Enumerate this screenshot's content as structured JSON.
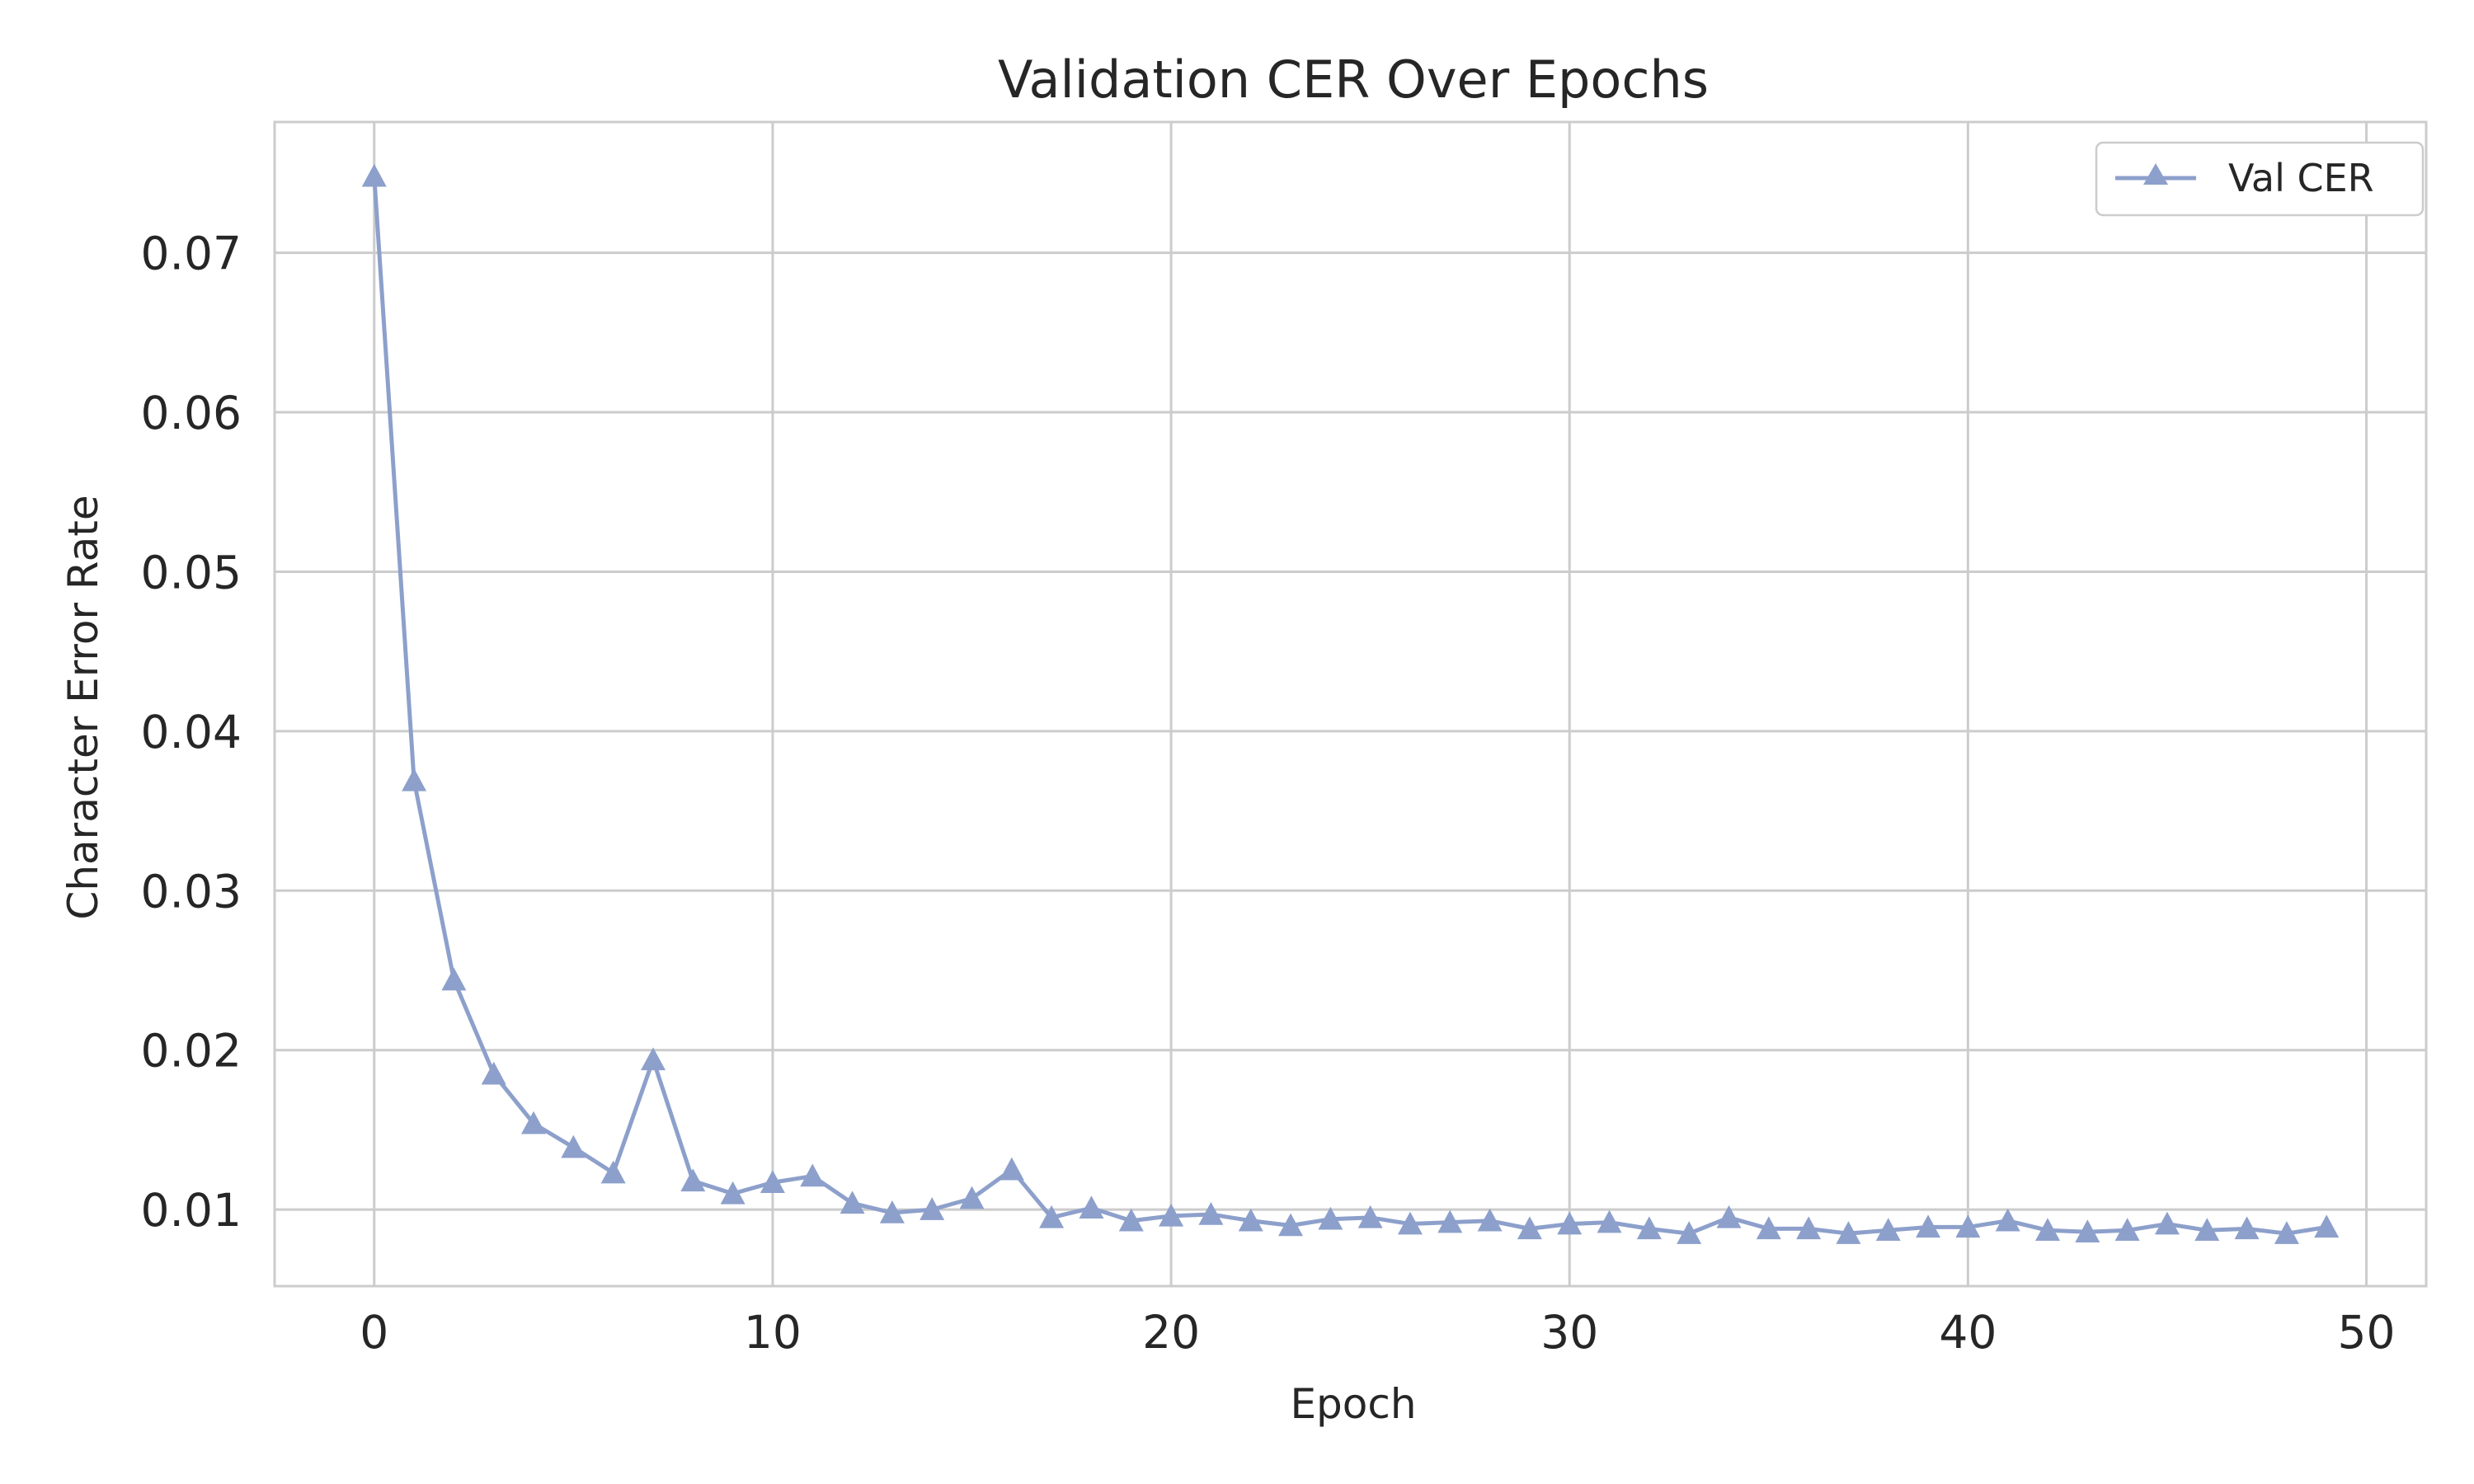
{
  "chart_data": {
    "type": "line",
    "title": "Validation CER Over Epochs",
    "xlabel": "Epoch",
    "ylabel": "Character Error Rate",
    "xlim": [
      -2.5,
      51.5
    ],
    "ylim": [
      0.0052,
      0.0782
    ],
    "xticks": [
      0,
      10,
      20,
      30,
      40,
      50
    ],
    "xtick_labels": [
      "0",
      "10",
      "20",
      "30",
      "40",
      "50"
    ],
    "yticks": [
      0.01,
      0.02,
      0.03,
      0.04,
      0.05,
      0.06,
      0.07
    ],
    "ytick_labels": [
      "0.01",
      "0.02",
      "0.03",
      "0.04",
      "0.05",
      "0.06",
      "0.07"
    ],
    "grid": true,
    "legend_position": "top-right",
    "series": [
      {
        "name": "Val CER",
        "color": "#8da0cb",
        "marker": "triangle-up",
        "x": [
          0,
          1,
          2,
          3,
          4,
          5,
          6,
          7,
          8,
          9,
          10,
          11,
          12,
          13,
          14,
          15,
          16,
          17,
          18,
          19,
          20,
          21,
          22,
          23,
          24,
          25,
          26,
          27,
          28,
          29,
          30,
          31,
          32,
          33,
          34,
          35,
          36,
          37,
          38,
          39,
          40,
          41,
          42,
          43,
          44,
          45,
          46,
          47,
          48,
          49
        ],
        "values": [
          0.0748,
          0.0369,
          0.0244,
          0.0185,
          0.0154,
          0.0139,
          0.0123,
          0.0194,
          0.0118,
          0.011,
          0.0117,
          0.0121,
          0.0104,
          0.0098,
          0.01,
          0.0107,
          0.0125,
          0.0095,
          0.0101,
          0.0093,
          0.0096,
          0.0097,
          0.0093,
          0.009,
          0.0094,
          0.0095,
          0.0091,
          0.0092,
          0.0093,
          0.0088,
          0.0091,
          0.0092,
          0.0088,
          0.0085,
          0.0095,
          0.0088,
          0.0088,
          0.0085,
          0.0087,
          0.0089,
          0.0089,
          0.0093,
          0.0087,
          0.0086,
          0.0087,
          0.0091,
          0.0087,
          0.0088,
          0.0085,
          0.0089
        ]
      }
    ]
  },
  "colors": {
    "grid": "#cccccc",
    "spine": "#cccccc",
    "text": "#262626",
    "background": "#ffffff"
  }
}
